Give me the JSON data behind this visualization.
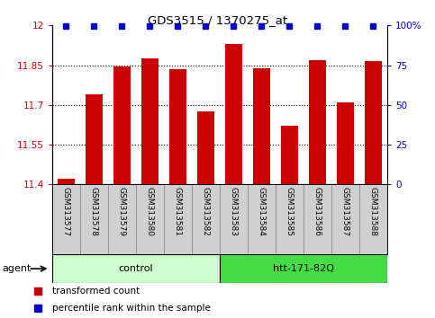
{
  "title": "GDS3515 / 1370275_at",
  "samples": [
    "GSM313577",
    "GSM313578",
    "GSM313579",
    "GSM313580",
    "GSM313581",
    "GSM313582",
    "GSM313583",
    "GSM313584",
    "GSM313585",
    "GSM313586",
    "GSM313587",
    "GSM313588"
  ],
  "bar_values": [
    11.42,
    11.74,
    11.845,
    11.875,
    11.835,
    11.675,
    11.93,
    11.84,
    11.62,
    11.87,
    11.71,
    11.865
  ],
  "percentile_values": [
    99.5,
    99.5,
    99.5,
    99.5,
    99.5,
    99.5,
    99.5,
    99.5,
    99.5,
    99.5,
    99.5,
    99.5
  ],
  "bar_color": "#cc0000",
  "percentile_color": "#0000cc",
  "ylim_left": [
    11.4,
    12.0
  ],
  "ylim_right": [
    0,
    100
  ],
  "yticks_left": [
    11.4,
    11.55,
    11.7,
    11.85,
    12.0
  ],
  "ytick_labels_left": [
    "11.4",
    "11.55",
    "11.7",
    "11.85",
    "12"
  ],
  "yticks_right": [
    0,
    25,
    50,
    75,
    100
  ],
  "ytick_labels_right": [
    "0",
    "25",
    "50",
    "75",
    "100%"
  ],
  "groups": [
    {
      "label": "control",
      "start": 0,
      "end": 5,
      "color": "#ccffcc"
    },
    {
      "label": "htt-171-82Q",
      "start": 6,
      "end": 11,
      "color": "#44dd44"
    }
  ],
  "agent_label": "agent",
  "bar_width": 0.6,
  "legend_items": [
    {
      "color": "#cc0000",
      "label": "transformed count"
    },
    {
      "color": "#0000cc",
      "label": "percentile rank within the sample"
    }
  ]
}
